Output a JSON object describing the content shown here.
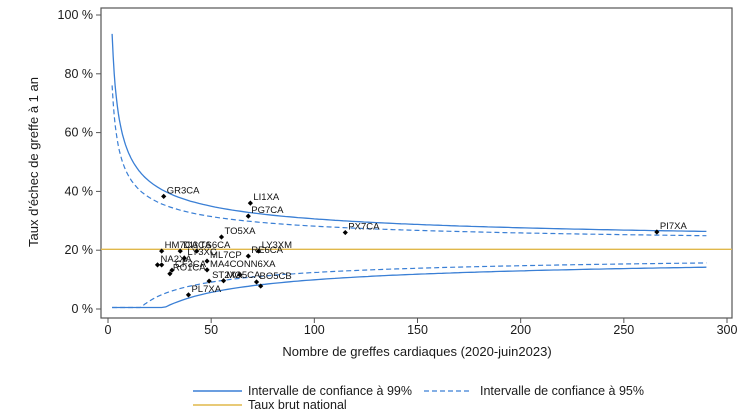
{
  "chart_data": {
    "type": "scatter",
    "subtype": "funnel-plot",
    "title": "",
    "xlabel": "Nombre de greffes cardiaques (2020-juin2023)",
    "ylabel": "Taux d'échec de greffe à 1 an",
    "xlim": [
      0,
      300
    ],
    "ylim": [
      0,
      100
    ],
    "xticks": [
      0,
      50,
      100,
      150,
      200,
      250,
      300
    ],
    "yticks": [
      0,
      20,
      40,
      60,
      80,
      100
    ],
    "ytick_suffix": " %",
    "grid": false,
    "national_rate": 20.3,
    "colors": {
      "ci99": "#3a7fd5",
      "ci95": "#3a7fd5",
      "national": "#e0b84a",
      "points": "#000000"
    },
    "ci_x_range": [
      2,
      290
    ],
    "points": [
      {
        "label": "GR3CA",
        "x": 27,
        "y": 38.3
      },
      {
        "label": "LI1XA",
        "x": 69,
        "y": 36.0
      },
      {
        "label": "PG7CA",
        "x": 68,
        "y": 31.6
      },
      {
        "label": "TO5XA",
        "x": 55,
        "y": 24.5
      },
      {
        "label": "PX7CA",
        "x": 115,
        "y": 26.0
      },
      {
        "label": "PI7XA",
        "x": 266,
        "y": 26.2
      },
      {
        "label": "HM7CA",
        "x": 26,
        "y": 19.7
      },
      {
        "label": "DI3CA",
        "x": 35,
        "y": 19.7
      },
      {
        "label": "TS6CA",
        "x": 43,
        "y": 19.7
      },
      {
        "label": "LY3XM",
        "x": 73,
        "y": 19.7
      },
      {
        "label": "RE6CA",
        "x": 68,
        "y": 18.0
      },
      {
        "label": "LY3XC",
        "x": 37,
        "y": 17.3
      },
      {
        "label": "ML7CP",
        "x": 48,
        "y": 16.3
      },
      {
        "label": "NA2XA",
        "x": 24,
        "y": 15.0
      },
      {
        "label": "",
        "x": 26,
        "y": 15.0
      },
      {
        "label": "CF3CA",
        "x": 31,
        "y": 13.2
      },
      {
        "label": "MA4CONN6XA",
        "x": 48,
        "y": 13.3
      },
      {
        "label": "",
        "x": 64,
        "y": 11.6
      },
      {
        "label": "RO1CA",
        "x": 30,
        "y": 12.0
      },
      {
        "label": "MO5CA",
        "x": 56,
        "y": 9.6
      },
      {
        "label": "BO5CB",
        "x": 72,
        "y": 9.2
      },
      {
        "label": "",
        "x": 74,
        "y": 7.8
      },
      {
        "label": "ST2XA",
        "x": 49,
        "y": 9.5
      },
      {
        "label": "PL7XA",
        "x": 39,
        "y": 4.8
      }
    ],
    "legend": {
      "placement": "bottom",
      "entries": [
        {
          "label": "Intervalle de confiance à 99%",
          "style": "solid",
          "color": "#3a7fd5"
        },
        {
          "label": "Intervalle de confiance à 95%",
          "style": "dashed",
          "color": "#3a7fd5"
        },
        {
          "label": "Taux brut national",
          "style": "solid",
          "color": "#e0b84a"
        }
      ]
    }
  }
}
